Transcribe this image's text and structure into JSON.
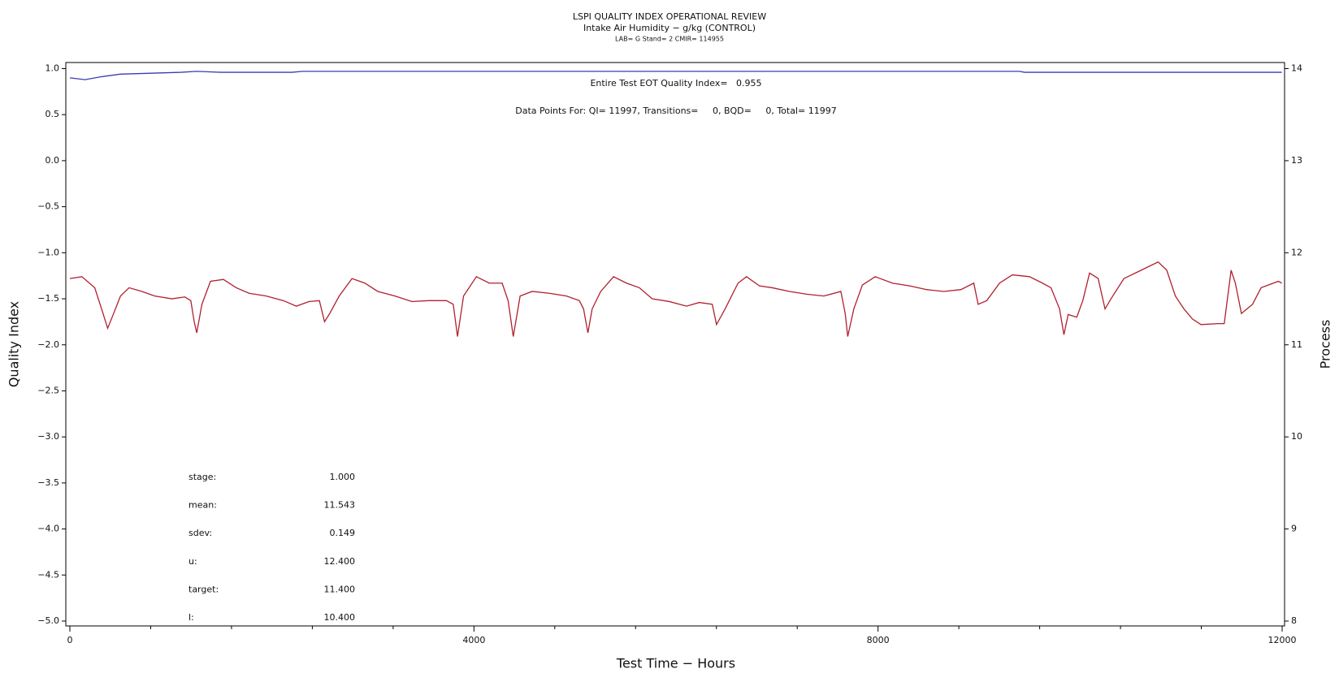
{
  "chart_data": {
    "type": "line",
    "title": "LSPI QUALITY INDEX OPERATIONAL REVIEW",
    "subtitle": "Intake Air Humidity − g/kg (CONTROL)",
    "subtitle2": "LAB= G Stand= 2 CMIR= 114955",
    "xlabel": "Test Time − Hours",
    "ylabel": "Quality Index",
    "y2label": "Process",
    "annotations": [
      "Entire Test EOT Quality Index=   0.955",
      "Data Points For: QI= 11997, Transitions=     0, BQD=     0, Total= 11997"
    ],
    "stats": [
      {
        "label": "stage:",
        "value": "1.000"
      },
      {
        "label": "mean:",
        "value": "11.543"
      },
      {
        "label": "sdev:",
        "value": "0.149"
      },
      {
        "label": "u:",
        "value": "12.400"
      },
      {
        "label": "target:",
        "value": "11.400"
      },
      {
        "label": "l:",
        "value": "10.400"
      }
    ],
    "xlim": [
      0,
      12000
    ],
    "xticks": [
      0,
      4000,
      8000,
      12000
    ],
    "xminorticks": [
      800,
      1600,
      2400,
      3200,
      4800,
      5600,
      6400,
      7200,
      8800,
      9600,
      10400,
      11200
    ],
    "ylim": [
      -5,
      1
    ],
    "yticks": [
      {
        "value": 1,
        "label": "1.0"
      },
      {
        "value": 0.5,
        "label": "0.5"
      },
      {
        "value": 0,
        "label": "0.0"
      },
      {
        "value": -0.5,
        "label": "−0.5"
      },
      {
        "value": -1,
        "label": "−1.0"
      },
      {
        "value": -1.5,
        "label": "−1.5"
      },
      {
        "value": -2,
        "label": "−2.0"
      },
      {
        "value": -2.5,
        "label": "−2.5"
      },
      {
        "value": -3,
        "label": "−3.0"
      },
      {
        "value": -3.5,
        "label": "−3.5"
      },
      {
        "value": -4,
        "label": "−4.0"
      },
      {
        "value": -4.5,
        "label": "−4.5"
      },
      {
        "value": -5,
        "label": "−5.0"
      }
    ],
    "y2lim": [
      8,
      14
    ],
    "y2ticks": [
      8,
      9,
      10,
      11,
      12,
      13,
      14
    ],
    "series": [
      {
        "color": "#3a3ab4",
        "x": [
          0,
          150,
          300,
          500,
          800,
          1100,
          1250,
          1500,
          2200,
          2300,
          9400,
          9450,
          11997
        ],
        "values": [
          0.9,
          0.88,
          0.91,
          0.94,
          0.95,
          0.96,
          0.97,
          0.96,
          0.96,
          0.97,
          0.97,
          0.96,
          0.96
        ]
      },
      {
        "color": "#b0202e",
        "axis": "y2",
        "x": [
          0,
          119,
          246,
          314,
          374,
          433,
          501,
          586,
          713,
          840,
          1010,
          1138,
          1197,
          1231,
          1256,
          1307,
          1392,
          1520,
          1647,
          1774,
          1944,
          2114,
          2241,
          2369,
          2470,
          2521,
          2572,
          2666,
          2793,
          2920,
          3048,
          3218,
          3387,
          3557,
          3727,
          3795,
          3837,
          3897,
          4024,
          4151,
          4279,
          4338,
          4389,
          4457,
          4576,
          4746,
          4916,
          5043,
          5085,
          5128,
          5170,
          5255,
          5382,
          5510,
          5637,
          5764,
          5934,
          6104,
          6231,
          6359,
          6401,
          6486,
          6614,
          6698,
          6826,
          6953,
          7123,
          7293,
          7463,
          7632,
          7675,
          7700,
          7760,
          7845,
          7972,
          8142,
          8312,
          8481,
          8651,
          8821,
          8948,
          8991,
          9076,
          9203,
          9330,
          9500,
          9628,
          9712,
          9797,
          9840,
          9882,
          9967,
          10027,
          10094,
          10179,
          10247,
          10306,
          10434,
          10604,
          10773,
          10858,
          10943,
          11028,
          11113,
          11197,
          11367,
          11427,
          11495,
          11537,
          11597,
          11707,
          11792,
          11962,
          11997
        ],
        "values": [
          11.72,
          11.74,
          11.62,
          11.39,
          11.18,
          11.34,
          11.53,
          11.62,
          11.58,
          11.53,
          11.5,
          11.52,
          11.48,
          11.25,
          11.13,
          11.44,
          11.69,
          11.71,
          11.62,
          11.56,
          11.53,
          11.48,
          11.42,
          11.47,
          11.48,
          11.25,
          11.34,
          11.53,
          11.72,
          11.67,
          11.58,
          11.53,
          11.47,
          11.48,
          11.48,
          11.44,
          11.09,
          11.53,
          11.74,
          11.67,
          11.67,
          11.48,
          11.09,
          11.53,
          11.58,
          11.56,
          11.53,
          11.48,
          11.39,
          11.13,
          11.39,
          11.58,
          11.74,
          11.67,
          11.62,
          11.5,
          11.47,
          11.42,
          11.46,
          11.44,
          11.22,
          11.39,
          11.67,
          11.74,
          11.64,
          11.62,
          11.58,
          11.55,
          11.53,
          11.58,
          11.34,
          11.09,
          11.39,
          11.65,
          11.74,
          11.67,
          11.64,
          11.6,
          11.58,
          11.6,
          11.67,
          11.44,
          11.48,
          11.67,
          11.76,
          11.74,
          11.67,
          11.62,
          11.39,
          11.11,
          11.33,
          11.3,
          11.48,
          11.78,
          11.72,
          11.39,
          11.5,
          11.72,
          11.81,
          11.9,
          11.81,
          11.53,
          11.39,
          11.28,
          11.22,
          11.23,
          11.23,
          11.81,
          11.67,
          11.34,
          11.44,
          11.62,
          11.69,
          11.67
        ]
      }
    ]
  }
}
